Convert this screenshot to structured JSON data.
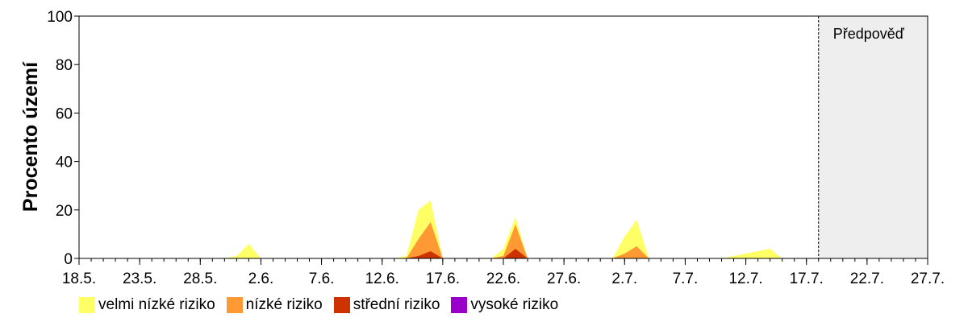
{
  "chart_data": {
    "type": "area",
    "stacked": true,
    "ylabel": "Procento území",
    "ylim": [
      0,
      100
    ],
    "yticks": [
      0,
      20,
      40,
      60,
      80,
      100
    ],
    "xlim": [
      "18.5.",
      "27.7."
    ],
    "xtick_labels": [
      "18.5.",
      "23.5.",
      "28.5.",
      "2.6.",
      "7.6.",
      "12.6.",
      "17.6.",
      "22.6.",
      "27.6.",
      "2.7.",
      "7.7.",
      "12.7.",
      "17.7.",
      "22.7.",
      "27.7."
    ],
    "forecast": {
      "label": "Předpověď",
      "start": "18.7.",
      "end": "27.7.",
      "color": "#eeeeee"
    },
    "x": [
      "30.5.",
      "31.5.",
      "1.6.",
      "2.6.",
      "3.6.",
      "13.6.",
      "14.6.",
      "15.6.",
      "16.6.",
      "17.6.",
      "21.6.",
      "22.6.",
      "23.6.",
      "24.6.",
      "1.7.",
      "2.7.",
      "3.7.",
      "4.7.",
      "10.7.",
      "11.7.",
      "12.7.",
      "13.7.",
      "14.7.",
      "15.7."
    ],
    "series": [
      {
        "name": "velmi nízké riziko",
        "color": "#ffff66",
        "values": [
          0,
          1,
          6,
          0,
          0,
          0,
          1,
          20,
          24,
          0,
          0,
          4,
          17,
          0,
          0,
          9,
          16,
          0,
          0,
          1,
          2,
          3,
          4,
          0
        ]
      },
      {
        "name": "nízké riziko",
        "color": "#ff9933",
        "values": [
          0,
          0,
          0,
          0,
          0,
          0,
          0,
          7,
          12,
          0,
          0,
          1,
          10,
          0,
          0,
          2,
          5,
          0,
          0,
          0,
          0,
          0,
          0,
          0
        ]
      },
      {
        "name": "střední riziko",
        "color": "#cc3300",
        "values": [
          0,
          0,
          0,
          0,
          0,
          0,
          0,
          1,
          3,
          0,
          0,
          0,
          4,
          0,
          0,
          0,
          0,
          0,
          0,
          0,
          0,
          0,
          0,
          0
        ]
      },
      {
        "name": "vysoké riziko",
        "color": "#9900cc",
        "values": [
          0,
          0,
          0,
          0,
          0,
          0,
          0,
          0,
          0,
          0,
          0,
          0,
          0,
          0,
          0,
          0,
          0,
          0,
          0,
          0,
          0,
          0,
          0,
          0
        ]
      }
    ],
    "grid": false,
    "legend_position": "bottom"
  }
}
